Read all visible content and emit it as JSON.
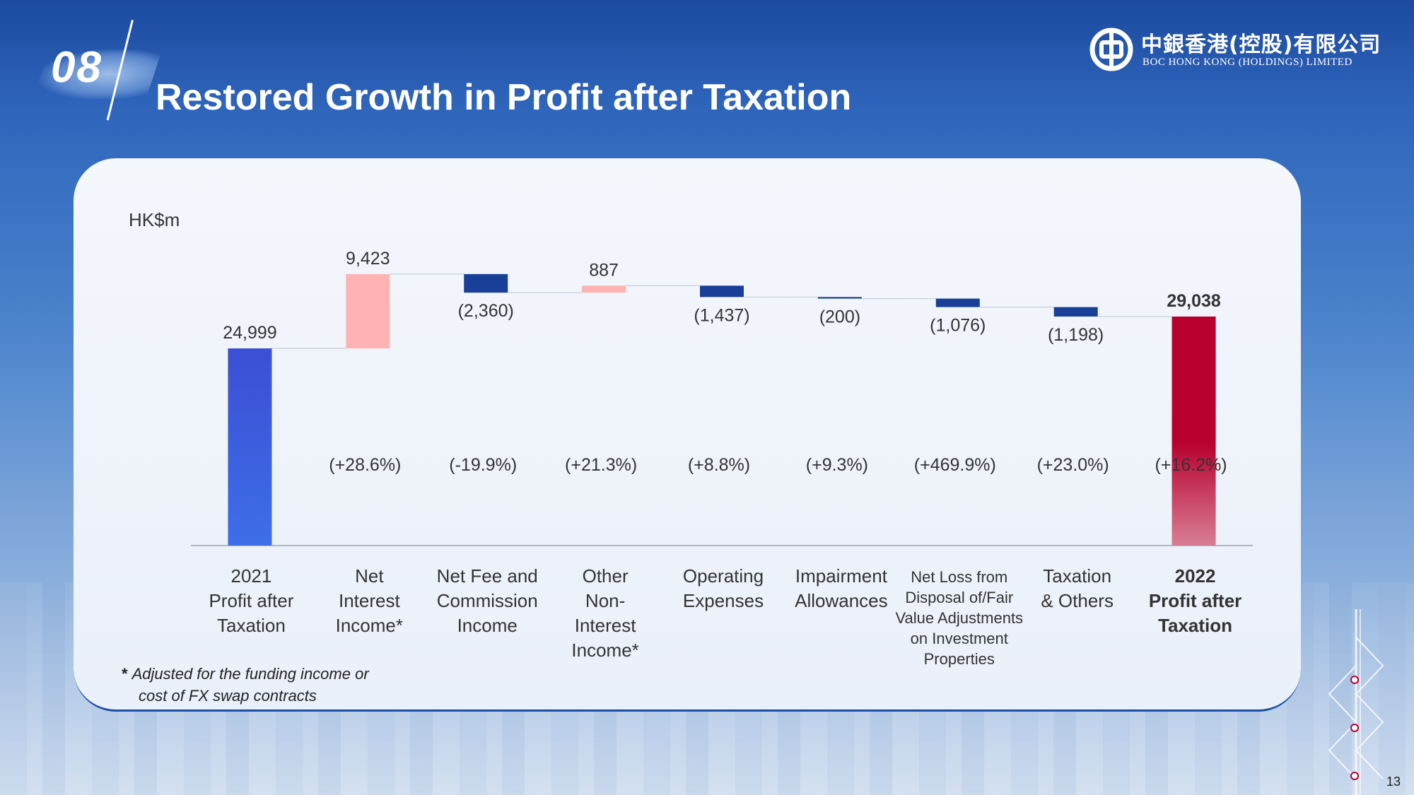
{
  "header": {
    "section_number": "08",
    "title": "Restored Growth in Profit after Taxation"
  },
  "logo": {
    "chinese_name": "中銀香港(控股)有限公司",
    "english_name": "BOC HONG KONG (HOLDINGS) LIMITED",
    "icon": "boc-logo-icon"
  },
  "chart_data": {
    "type": "waterfall",
    "unit_label": "HK$m",
    "categories": [
      [
        "2021",
        "Profit after",
        "Taxation"
      ],
      [
        "Net",
        "Interest",
        "Income*"
      ],
      [
        "Net Fee and",
        "Commission",
        "Income"
      ],
      [
        "Other",
        "Non-",
        "Interest",
        "Income*"
      ],
      [
        "Operating",
        "Expenses"
      ],
      [
        "Impairment",
        "Allowances"
      ],
      [
        "Net Loss from",
        "Disposal of/Fair",
        "Value Adjustments",
        "on Investment",
        "Properties"
      ],
      [
        "Taxation",
        "& Others"
      ],
      [
        "2022",
        "Profit after",
        "Taxation"
      ]
    ],
    "values": [
      24999,
      9423,
      -2360,
      887,
      -1437,
      -200,
      -1076,
      -1198,
      29038
    ],
    "value_labels": [
      "24,999",
      "9,423",
      "(2,360)",
      "887",
      "(1,437)",
      "(200)",
      "(1,076)",
      "(1,198)",
      "29,038"
    ],
    "bar_kinds": [
      "total",
      "increase",
      "decrease",
      "increase",
      "decrease",
      "decrease",
      "decrease",
      "decrease",
      "total"
    ],
    "change_labels": [
      "",
      "(+28.6%)",
      "(-19.9%)",
      "(+21.3%)",
      "(+8.8%)",
      "(+9.3%)",
      "(+469.9%)",
      "(+23.0%)",
      "(+16.2%)"
    ],
    "bold_categories": [
      8
    ],
    "ylim": [
      0,
      40500
    ],
    "colors": {
      "start_total": "#3b56d6",
      "increase": "#ffb3b3",
      "decrease": "#1a3f98",
      "end_total": "#b8002e"
    }
  },
  "footnote": {
    "marker": "*",
    "line1": "Adjusted for the funding income or",
    "line2": "cost of FX swap contracts"
  },
  "page_number": "13"
}
